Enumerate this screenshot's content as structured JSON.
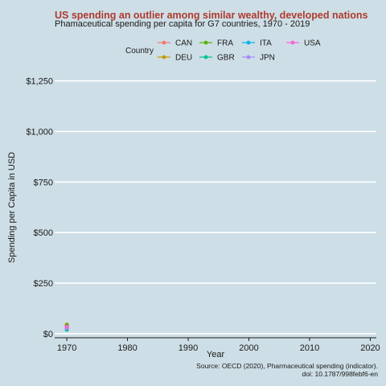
{
  "chart_data": {
    "type": "scatter",
    "title": "US spending an outlier among similar wealthy, developed nations",
    "subtitle": "Phamaceutical spending per capita for G7 countries, 1970 - 2019",
    "xlabel": "Year",
    "ylabel": "Spending per Capita in USD",
    "xlim": [
      1968,
      2021
    ],
    "ylim": [
      -20,
      1300
    ],
    "x_ticks": [
      1970,
      1980,
      1990,
      2000,
      2010,
      2020
    ],
    "x_tick_labels": [
      "1970",
      "1980",
      "1990",
      "2000",
      "2010",
      "2020"
    ],
    "y_ticks": [
      0,
      250,
      500,
      750,
      1000,
      1250
    ],
    "y_tick_labels": [
      "$0",
      "$250",
      "$500",
      "$750",
      "$1,000",
      "$1,250"
    ],
    "grid": true,
    "legend": {
      "title": "Country",
      "placement": "top"
    },
    "series": [
      {
        "name": "CAN",
        "color": "#f8766d",
        "x": [
          1970
        ],
        "y": [
          38
        ]
      },
      {
        "name": "DEU",
        "color": "#c49a00",
        "x": [
          1970
        ],
        "y": [
          45
        ]
      },
      {
        "name": "FRA",
        "color": "#53b400",
        "x": [
          1970
        ],
        "y": [
          42
        ]
      },
      {
        "name": "GBR",
        "color": "#00c094",
        "x": [
          1970
        ],
        "y": [
          20
        ]
      },
      {
        "name": "ITA",
        "color": "#00b6eb",
        "x": [
          1970
        ],
        "y": [
          30
        ]
      },
      {
        "name": "JPN",
        "color": "#a58aff",
        "x": [
          1970
        ],
        "y": [
          28
        ]
      },
      {
        "name": "USA",
        "color": "#fb61d7",
        "x": [
          1970
        ],
        "y": [
          35
        ]
      }
    ],
    "caption_lines": [
      "Source: OECD (2020), Pharmaceutical spending (indicator).",
      "doi: 10.1787/998febf6-en"
    ]
  }
}
